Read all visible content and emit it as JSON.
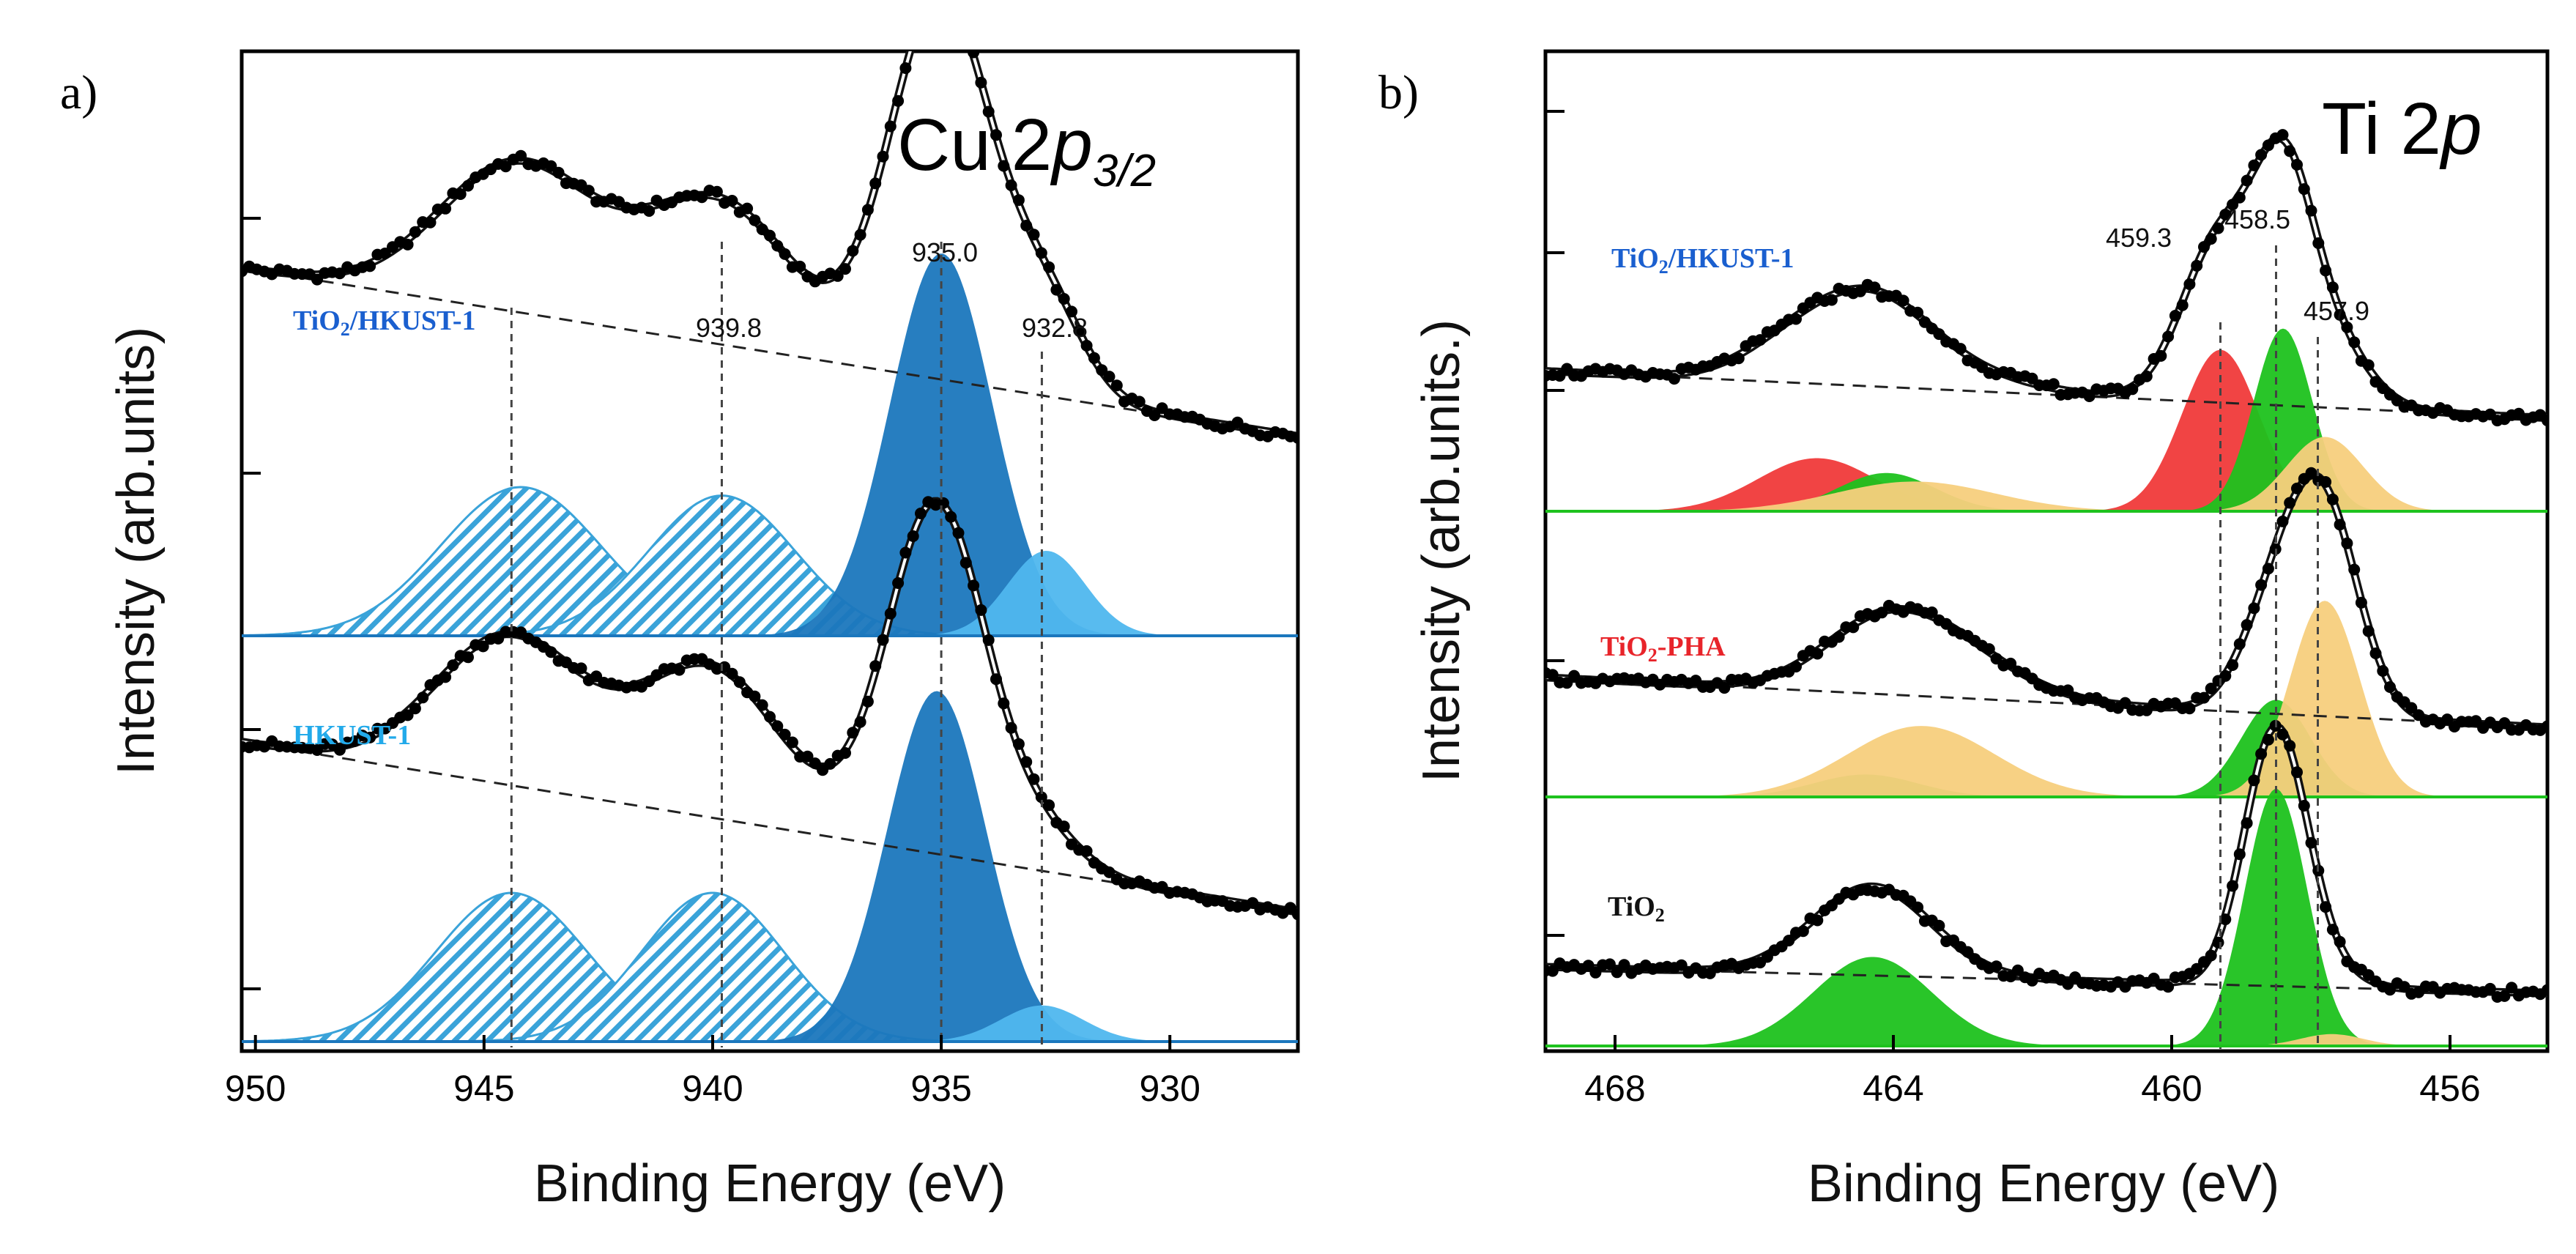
{
  "figure": {
    "panel_a_letter": "a)",
    "panel_b_letter": "b)"
  },
  "colors": {
    "cu_main": "#1b77bd",
    "cu_sat": "#3aa3d9",
    "cu_light": "#4fb7ee",
    "ti_green": "#1ec21e",
    "ti_red": "#f03a3a",
    "ti_orange": "#f7cf7d",
    "label_blue": "#1a5fcf",
    "label_cyan": "#22aaea",
    "label_red": "#e8242a"
  },
  "chart_data": [
    {
      "type": "line",
      "panel": "a",
      "title_main": "Cu 2",
      "title_italic": "p",
      "title_sub": "3/2",
      "xlabel": "Binding Energy (eV)",
      "ylabel": "Intensity (arb.units)",
      "xlim": [
        950.3,
        927.2
      ],
      "x_ticks": [
        "950",
        "945",
        "940",
        "935",
        "930"
      ],
      "x_tick_values": [
        950,
        945,
        940,
        935,
        930
      ],
      "peak_markers": [
        {
          "value": 944.4,
          "label": ""
        },
        {
          "value": 939.8,
          "label": "939.8"
        },
        {
          "value": 935.0,
          "label": "935.0"
        },
        {
          "value": 932.8,
          "label": "932.8"
        }
      ],
      "spectra": [
        {
          "name_main": "TiO",
          "name_sub": "2",
          "name_rest": "/HKUST-1",
          "label_color": "#1a5fcf",
          "background": {
            "x": [
              950.0,
              927.5
            ],
            "y": [
              1.72,
              0.95
            ]
          },
          "components": [
            {
              "center": 944.2,
              "sigma": 1.75,
              "amp": 0.7,
              "style": "hatch",
              "color": "#3aa3d9"
            },
            {
              "center": 939.8,
              "sigma": 1.6,
              "amp": 0.66,
              "style": "hatch",
              "color": "#3aa3d9"
            },
            {
              "center": 935.0,
              "sigma": 1.12,
              "amp": 1.8,
              "style": "fill",
              "color": "#1b77bd"
            },
            {
              "center": 932.7,
              "sigma": 0.85,
              "amp": 0.4,
              "style": "fill",
              "color": "#4fb7ee"
            }
          ]
        },
        {
          "name_main": "HKUST-1",
          "name_sub": "",
          "name_rest": "",
          "label_color": "#22aaea",
          "background": {
            "x": [
              950.0,
              927.5
            ],
            "y": [
              1.4,
              0.62
            ]
          },
          "components": [
            {
              "center": 944.4,
              "sigma": 1.65,
              "amp": 0.7,
              "style": "hatch",
              "color": "#3aa3d9"
            },
            {
              "center": 940.0,
              "sigma": 1.55,
              "amp": 0.7,
              "style": "hatch",
              "color": "#3aa3d9"
            },
            {
              "center": 935.1,
              "sigma": 1.08,
              "amp": 1.65,
              "style": "fill",
              "color": "#1b77bd"
            },
            {
              "center": 932.8,
              "sigma": 0.9,
              "amp": 0.17,
              "style": "fill",
              "color": "#4fb7ee"
            }
          ]
        }
      ]
    },
    {
      "type": "line",
      "panel": "b",
      "title_main": "Ti 2",
      "title_italic": "p",
      "title_sub": "",
      "xlabel": "Binding Energy (eV)",
      "ylabel": "Intensity (arb.units.)",
      "xlim": [
        469.0,
        454.6
      ],
      "x_ticks": [
        "468",
        "464",
        "460",
        "456"
      ],
      "x_tick_values": [
        468,
        464,
        460,
        456
      ],
      "peak_markers": [
        {
          "value": 459.3,
          "label": "459.3"
        },
        {
          "value": 458.5,
          "label": "458.5"
        },
        {
          "value": 457.9,
          "label": "457.9"
        }
      ],
      "spectra": [
        {
          "name_main": "TiO",
          "name_sub": "2",
          "name_rest": "/HKUST-1",
          "label_color": "#1a5fcf",
          "background": {
            "x": [
              469.0,
              456.6
            ],
            "y": [
              0.66,
              0.47
            ]
          },
          "components": [
            {
              "center": 465.1,
              "sigma": 0.85,
              "amp": 0.25,
              "style": "fill",
              "color": "#f03a3a"
            },
            {
              "center": 464.1,
              "sigma": 0.7,
              "amp": 0.18,
              "style": "fill",
              "color": "#1ec21e"
            },
            {
              "center": 463.7,
              "sigma": 1.15,
              "amp": 0.14,
              "style": "fill",
              "color": "#f7cf7d"
            },
            {
              "center": 459.3,
              "sigma": 0.55,
              "amp": 0.76,
              "style": "fill",
              "color": "#f03a3a"
            },
            {
              "center": 458.4,
              "sigma": 0.42,
              "amp": 0.86,
              "style": "fill",
              "color": "#1ec21e"
            },
            {
              "center": 457.8,
              "sigma": 0.55,
              "amp": 0.35,
              "style": "fill",
              "color": "#f7cf7d"
            }
          ]
        },
        {
          "name_main": "TiO",
          "name_sub": "2",
          "name_rest": "-PHA",
          "label_color": "#e8242a",
          "background": {
            "x": [
              469.0,
              455.0
            ],
            "y": [
              0.64,
              0.38
            ]
          },
          "components": [
            {
              "center": 464.4,
              "sigma": 0.75,
              "amp": 0.12,
              "style": "fill",
              "color": "#1ec21e"
            },
            {
              "center": 463.6,
              "sigma": 1.05,
              "amp": 0.38,
              "style": "fill",
              "color": "#f7cf7d"
            },
            {
              "center": 458.5,
              "sigma": 0.5,
              "amp": 0.52,
              "style": "fill",
              "color": "#1ec21e"
            },
            {
              "center": 457.8,
              "sigma": 0.5,
              "amp": 1.05,
              "style": "fill",
              "color": "#f7cf7d"
            }
          ]
        },
        {
          "name_main": "TiO",
          "name_sub": "2",
          "name_rest": "",
          "label_color": "#111111",
          "background": {
            "x": [
              469.0,
              455.0
            ],
            "y": [
              0.4,
              0.27
            ]
          },
          "components": [
            {
              "center": 464.3,
              "sigma": 0.85,
              "amp": 0.45,
              "style": "fill",
              "color": "#1ec21e"
            },
            {
              "center": 458.5,
              "sigma": 0.45,
              "amp": 1.3,
              "style": "fill",
              "color": "#1ec21e"
            },
            {
              "center": 457.7,
              "sigma": 0.45,
              "amp": 0.06,
              "style": "fill",
              "color": "#f7cf7d"
            }
          ]
        }
      ]
    }
  ]
}
